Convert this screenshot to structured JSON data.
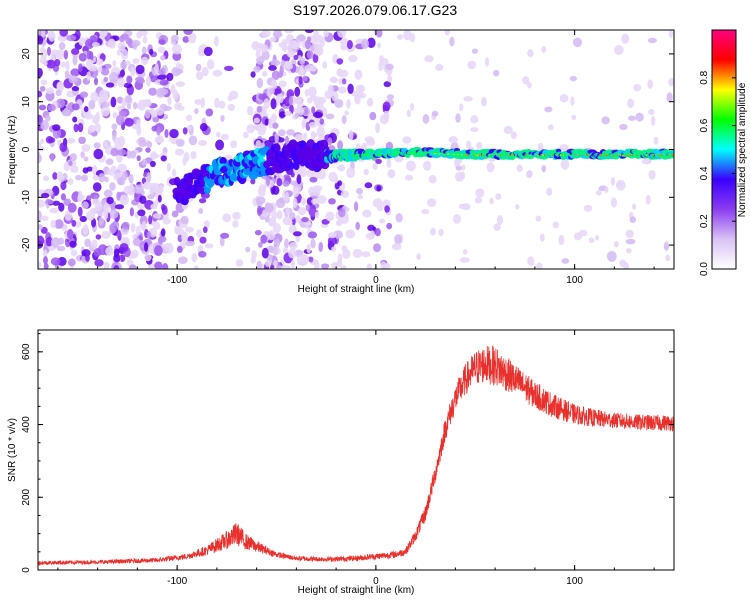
{
  "title": "S197.2026.079.06.17.G23",
  "chart_data": [
    {
      "type": "heatmap",
      "panel": "spectrogram",
      "xlabel": "Height of straight line (km)",
      "ylabel": "Frequency (Hz)",
      "xlim": [
        -170,
        150
      ],
      "ylim": [
        -25,
        25
      ],
      "xticks": [
        -100,
        0,
        100
      ],
      "yticks": [
        -20,
        -10,
        0,
        10,
        20
      ],
      "colorbar": {
        "label": "Normalized spectral amplitude",
        "range": [
          0.0,
          1.0
        ],
        "ticks": [
          0.0,
          0.2,
          0.4,
          0.6,
          0.8
        ],
        "tick_labels": [
          "0.0",
          "0.2",
          "0.4",
          "0.6",
          "0.8"
        ],
        "colors": [
          "#ffffff",
          "#d9c2f5",
          "#8a3df0",
          "#3a00ff",
          "#00ffff",
          "#00ff00",
          "#ffff00",
          "#ff0000",
          "#ff0080"
        ]
      },
      "ridge_track": [
        {
          "x": -100,
          "f": -9
        },
        {
          "x": -80,
          "f": -5
        },
        {
          "x": -60,
          "f": -3
        },
        {
          "x": -40,
          "f": -1
        },
        {
          "x": -25,
          "f": -1.5
        },
        {
          "x": -10,
          "f": -1
        },
        {
          "x": 0,
          "f": -1
        },
        {
          "x": 20,
          "f": -0.5
        },
        {
          "x": 50,
          "f": -1
        },
        {
          "x": 100,
          "f": -1
        },
        {
          "x": 150,
          "f": -1
        }
      ]
    },
    {
      "type": "line",
      "panel": "snr",
      "xlabel": "Height of straight line (km)",
      "ylabel": "SNR (10 * v/v)",
      "xlim": [
        -170,
        150
      ],
      "ylim": [
        0,
        660
      ],
      "xticks": [
        -100,
        0,
        100
      ],
      "yticks": [
        0,
        200,
        400,
        600
      ],
      "color": "#e8302c",
      "series": {
        "name": "SNR",
        "x": [
          -170,
          -140,
          -110,
          -95,
          -85,
          -75,
          -70,
          -65,
          -60,
          -55,
          -50,
          -40,
          -30,
          -20,
          -10,
          0,
          10,
          15,
          20,
          25,
          30,
          35,
          40,
          45,
          50,
          55,
          60,
          70,
          80,
          90,
          100,
          110,
          120,
          130,
          140,
          150
        ],
        "mean": [
          18,
          20,
          25,
          35,
          50,
          75,
          90,
          70,
          60,
          50,
          40,
          30,
          28,
          28,
          30,
          35,
          40,
          48,
          90,
          150,
          260,
          380,
          460,
          510,
          540,
          550,
          545,
          510,
          470,
          440,
          420,
          410,
          405,
          400,
          398,
          398
        ],
        "amp": [
          10,
          10,
          12,
          15,
          25,
          45,
          60,
          40,
          30,
          20,
          15,
          12,
          12,
          12,
          14,
          15,
          18,
          20,
          30,
          40,
          50,
          60,
          70,
          80,
          90,
          95,
          100,
          80,
          70,
          60,
          50,
          45,
          40,
          40,
          40,
          40
        ]
      }
    }
  ]
}
